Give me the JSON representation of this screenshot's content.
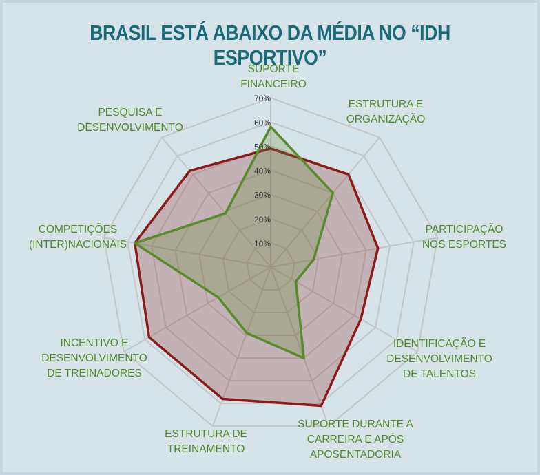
{
  "chart_data": {
    "type": "radar",
    "title": "BRASIL ESTÁ ABAIXO DA MÉDIA NO “IDH ESPORTIVO”",
    "categories": [
      "SUPORTE\nFINANCEIRO",
      "ESTRUTURA E\nORGANIZAÇÃO",
      "PARTICIPAÇÃO\nNOS ESPORTES",
      "IDENTIFICAÇÃO E\nDESENVOLVIMENTO\nDE TALENTOS",
      "SUPORTE DURANTE A\nCARREIRA E APÓS\nAPOSENTADORIA",
      "ESTRUTURA DE\nTREINAMENTO",
      "INCENTIVO E\nDESENVOLVIMENTO\nDE TREINADORES",
      "COMPETIÇÕES\n(INTER)NACIONAIS",
      "PESQUISA E\nDESENVOLVIMENTO"
    ],
    "series": [
      {
        "color": "#8b1a1a",
        "values": [
          49,
          50,
          45,
          43,
          61,
          58,
          58,
          57,
          52
        ]
      },
      {
        "color": "#5a8a2e",
        "values": [
          58,
          40,
          18,
          12,
          40,
          29,
          25,
          57,
          29
        ]
      }
    ],
    "rlim": [
      0,
      70
    ],
    "rticks": [
      {
        "value": 10,
        "label": "10%"
      },
      {
        "value": 20,
        "label": "20%"
      },
      {
        "value": 30,
        "label": "30%"
      },
      {
        "value": 40,
        "label": "40%"
      },
      {
        "value": 50,
        "label": "50%"
      },
      {
        "value": 60,
        "label": "60%"
      },
      {
        "value": 70,
        "label": "70%"
      }
    ],
    "grid": true
  }
}
